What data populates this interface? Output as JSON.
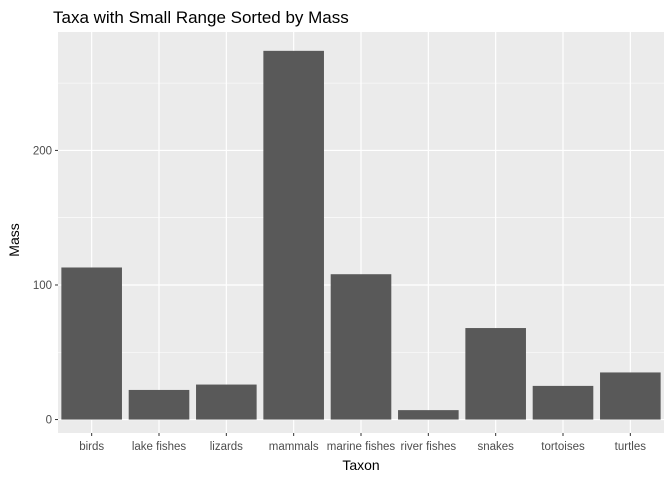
{
  "chart_data": {
    "type": "bar",
    "title": "Taxa with Small Range Sorted by Mass",
    "xlabel": "Taxon",
    "ylabel": "Mass",
    "categories": [
      "birds",
      "lake fishes",
      "lizards",
      "mammals",
      "marine fishes",
      "river fishes",
      "snakes",
      "tortoises",
      "turtles"
    ],
    "values": [
      113,
      22,
      26,
      274,
      108,
      7,
      68,
      25,
      35
    ],
    "ylim": [
      -10,
      288
    ],
    "yticks": [
      0,
      100,
      200
    ],
    "grid": true,
    "bar_color": "#595959",
    "panel_color": "#EBEBEB",
    "grid_color": "#FFFFFF"
  }
}
